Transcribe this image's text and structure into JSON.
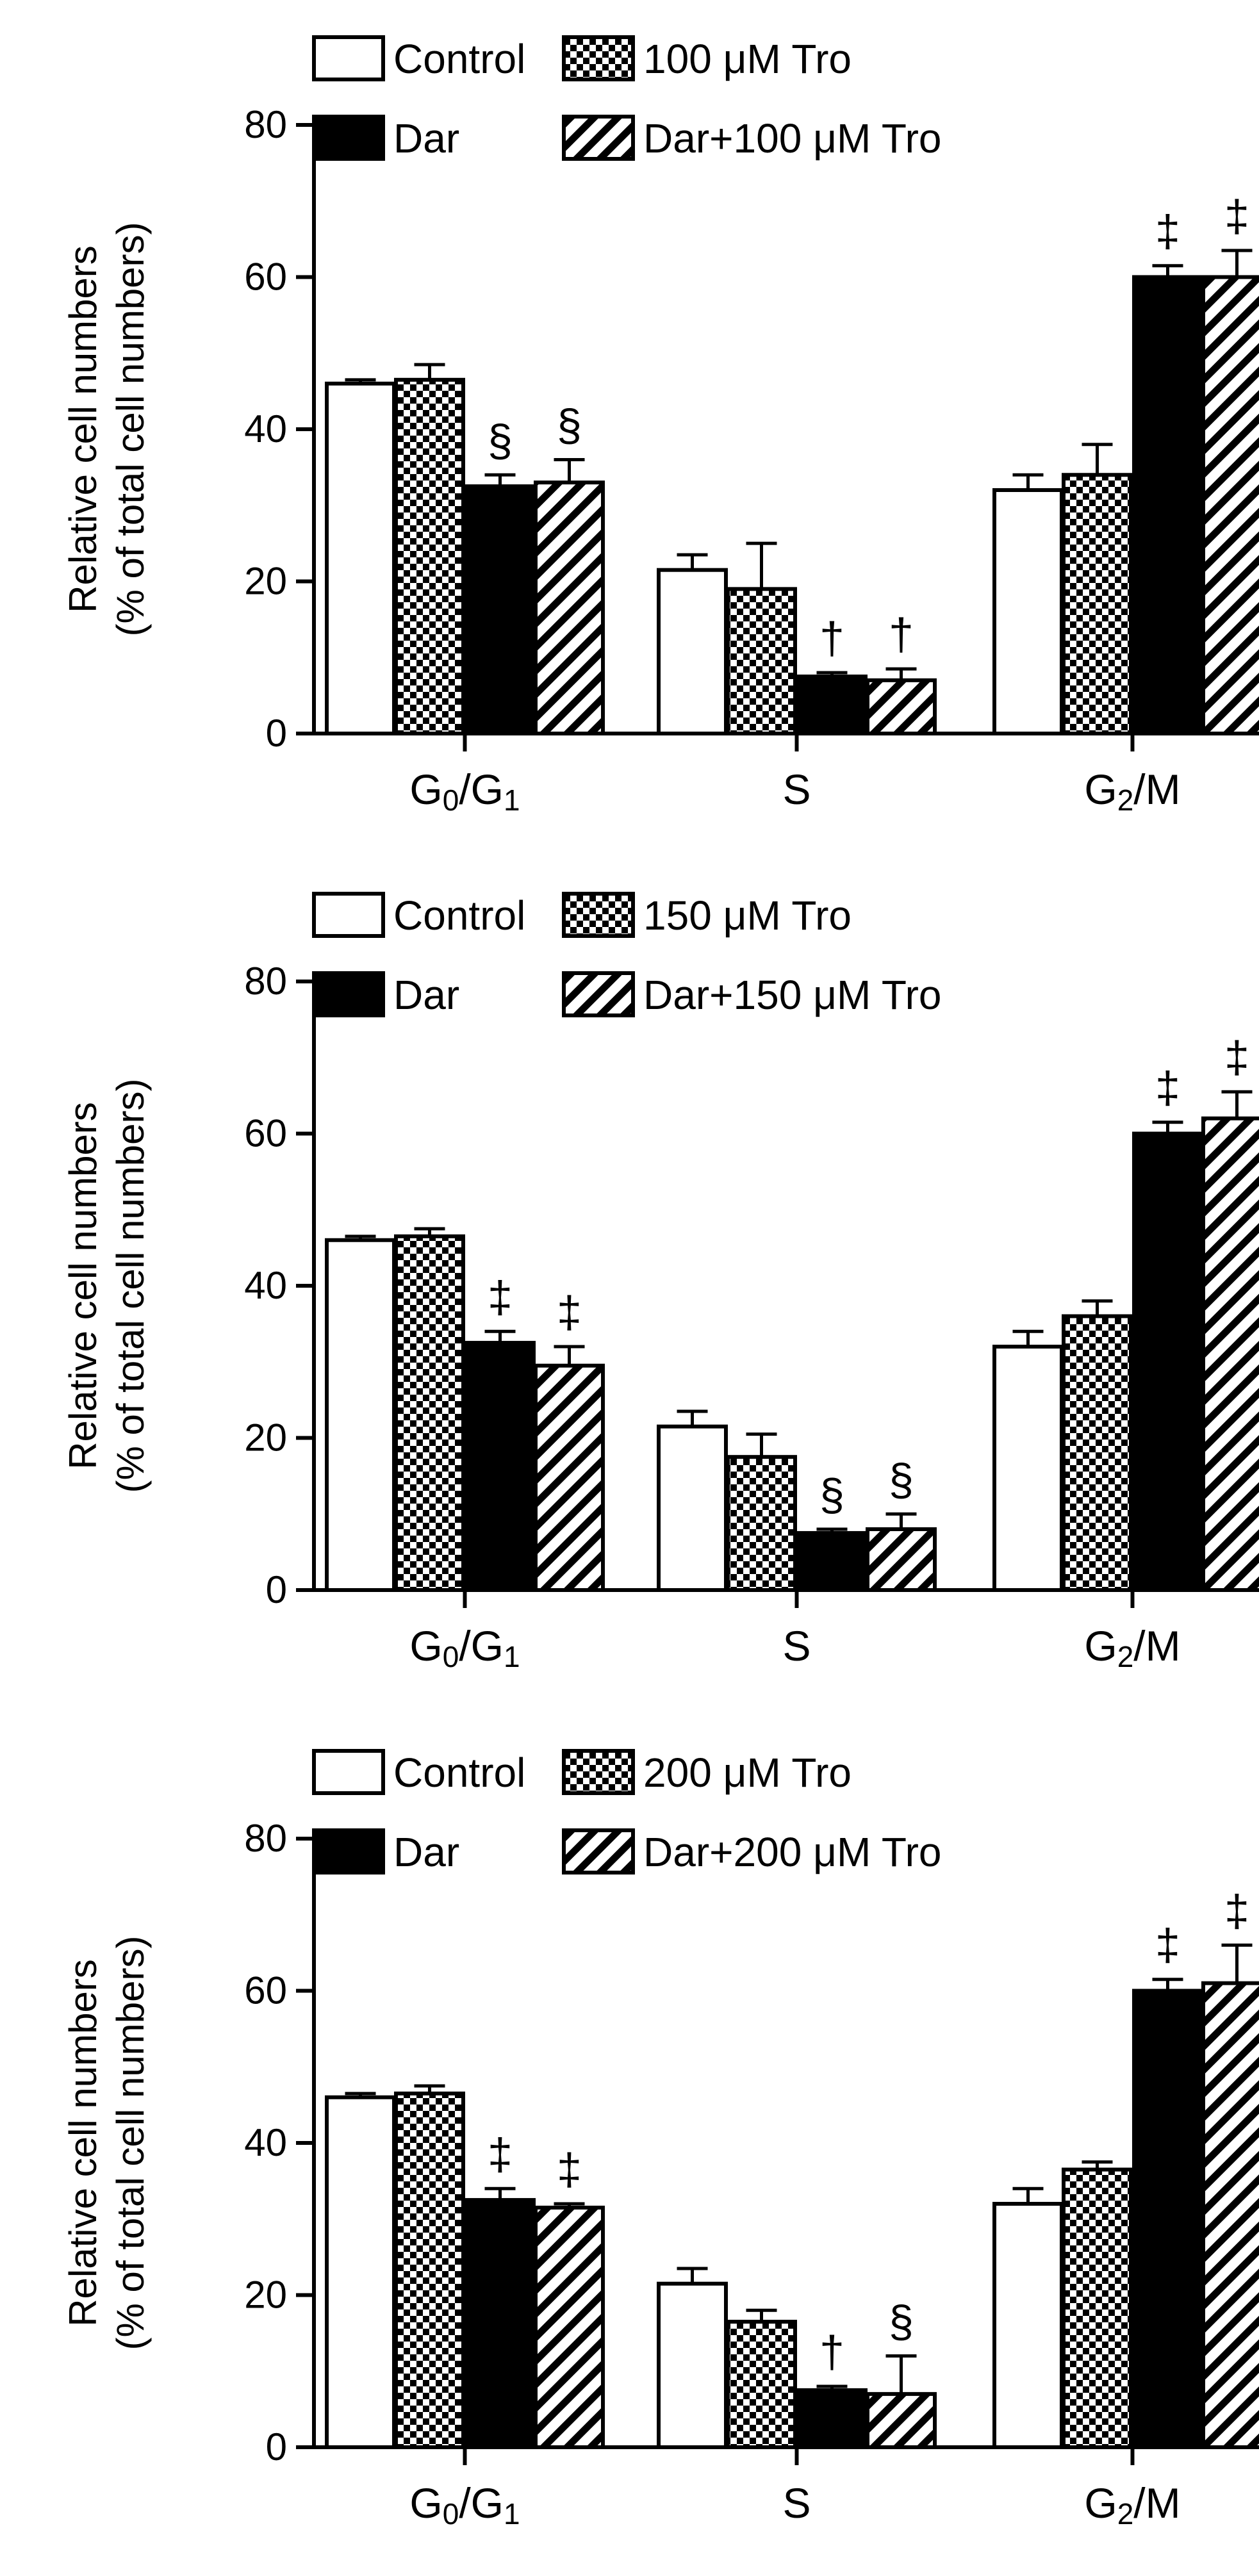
{
  "chart_data": [
    {
      "type": "bar",
      "panel": "top",
      "ylabel_line1": "Relative cell numbers",
      "ylabel_line2": "(% of total cell numbers)",
      "ylim": [
        0,
        80
      ],
      "yticks": [
        0,
        20,
        40,
        60,
        80
      ],
      "groups": [
        "G0/G1",
        "S",
        "G2/M"
      ],
      "series": [
        {
          "name": "Control",
          "legend_label": "Control",
          "pattern": "open",
          "values": [
            46,
            21.5,
            32
          ],
          "errors": [
            0.5,
            2,
            2
          ],
          "annotations": [
            "",
            "",
            ""
          ]
        },
        {
          "name": "100 μM Tro",
          "legend_label": "100 μM Tro",
          "pattern": "checker",
          "values": [
            46.5,
            19,
            34
          ],
          "errors": [
            2,
            6,
            4
          ],
          "annotations": [
            "",
            "",
            ""
          ]
        },
        {
          "name": "Dar",
          "legend_label": "Dar",
          "pattern": "solid",
          "values": [
            32.5,
            7.5,
            60
          ],
          "errors": [
            1.5,
            0.5,
            1.5
          ],
          "annotations": [
            "§",
            "†",
            "‡"
          ]
        },
        {
          "name": "Dar+100 μM Tro",
          "legend_label": "Dar+100 μM Tro",
          "pattern": "hatch",
          "values": [
            33,
            7,
            60
          ],
          "errors": [
            3,
            1.5,
            3.5
          ],
          "annotations": [
            "§",
            "†",
            "‡"
          ]
        }
      ]
    },
    {
      "type": "bar",
      "panel": "middle",
      "ylabel_line1": "Relative cell numbers",
      "ylabel_line2": "(% of total cell numbers)",
      "ylim": [
        0,
        80
      ],
      "yticks": [
        0,
        20,
        40,
        60,
        80
      ],
      "groups": [
        "G0/G1",
        "S",
        "G2/M"
      ],
      "series": [
        {
          "name": "Control",
          "legend_label": "Control",
          "pattern": "open",
          "values": [
            46,
            21.5,
            32
          ],
          "errors": [
            0.5,
            2,
            2
          ],
          "annotations": [
            "",
            "",
            ""
          ]
        },
        {
          "name": "150 μM Tro",
          "legend_label": "150 μM Tro",
          "pattern": "checker",
          "values": [
            46.5,
            17.5,
            36
          ],
          "errors": [
            1,
            3,
            2
          ],
          "annotations": [
            "",
            "",
            ""
          ]
        },
        {
          "name": "Dar",
          "legend_label": "Dar",
          "pattern": "solid",
          "values": [
            32.5,
            7.5,
            60
          ],
          "errors": [
            1.5,
            0.5,
            1.5
          ],
          "annotations": [
            "‡",
            "§",
            "‡"
          ]
        },
        {
          "name": "Dar+150 μM Tro",
          "legend_label": "Dar+150 μM Tro",
          "pattern": "hatch",
          "values": [
            29.5,
            8,
            62
          ],
          "errors": [
            2.5,
            2,
            3.5
          ],
          "annotations": [
            "‡",
            "§",
            "‡"
          ]
        }
      ]
    },
    {
      "type": "bar",
      "panel": "bottom",
      "ylabel_line1": "Relative cell numbers",
      "ylabel_line2": "(% of total cell numbers)",
      "ylim": [
        0,
        80
      ],
      "yticks": [
        0,
        20,
        40,
        60,
        80
      ],
      "groups": [
        "G0/G1",
        "S",
        "G2/M"
      ],
      "series": [
        {
          "name": "Control",
          "legend_label": "Control",
          "pattern": "open",
          "values": [
            46,
            21.5,
            32
          ],
          "errors": [
            0.5,
            2,
            2
          ],
          "annotations": [
            "",
            "",
            ""
          ]
        },
        {
          "name": "200 μM Tro",
          "legend_label": "200 μM Tro",
          "pattern": "checker",
          "values": [
            46.5,
            16.5,
            36.5
          ],
          "errors": [
            1,
            1.5,
            1
          ],
          "annotations": [
            "",
            "",
            ""
          ]
        },
        {
          "name": "Dar",
          "legend_label": "Dar",
          "pattern": "solid",
          "values": [
            32.5,
            7.5,
            60
          ],
          "errors": [
            1.5,
            0.5,
            1.5
          ],
          "annotations": [
            "‡",
            "†",
            "‡"
          ]
        },
        {
          "name": "Dar+200 μM Tro",
          "legend_label": "Dar+200 μM Tro",
          "pattern": "hatch",
          "values": [
            31.5,
            7,
            61
          ],
          "errors": [
            0.5,
            5,
            5
          ],
          "annotations": [
            "‡",
            "§",
            "‡"
          ]
        }
      ]
    }
  ]
}
